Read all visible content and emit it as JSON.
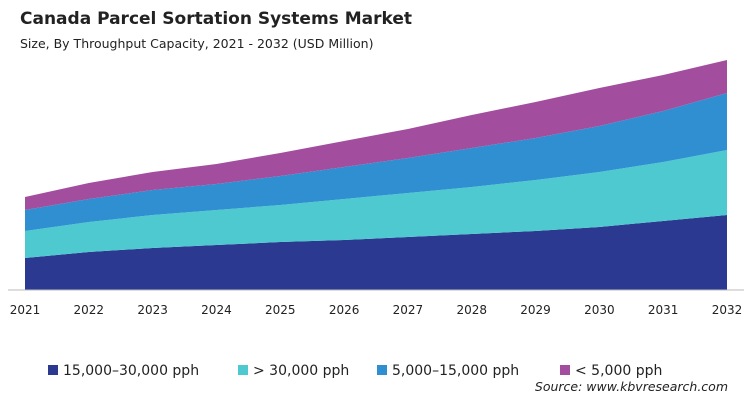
{
  "chart_data": {
    "type": "stacked_area",
    "title": "Canada Parcel Sortation Systems Market",
    "subtitle": "Size, By Throughput Capacity, 2021 - 2032 (USD Million)",
    "source": "Source: www.kbvresearch.com",
    "categories": [
      "2021",
      "2022",
      "2023",
      "2024",
      "2025",
      "2026",
      "2027",
      "2028",
      "2029",
      "2030",
      "2031",
      "2032"
    ],
    "ylim": [
      0,
      240
    ],
    "series": [
      {
        "name": "15,000–30,000 pph",
        "color": "#2b3990",
        "values": [
          32,
          38,
          42,
          45,
          48,
          50,
          53,
          56,
          59,
          63,
          69,
          75
        ]
      },
      {
        "name": "> 30,000 pph",
        "color": "#4ec9d0",
        "values": [
          27,
          30,
          33,
          35,
          37,
          41,
          44,
          47,
          51,
          55,
          59,
          65
        ]
      },
      {
        "name": "5,000–15,000 pph",
        "color": "#2f8fd0",
        "values": [
          21,
          23,
          25,
          26,
          29,
          32,
          35,
          39,
          42,
          46,
          51,
          57
        ]
      },
      {
        "name": "< 5,000 pph",
        "color": "#a34d9e",
        "values": [
          13,
          16,
          18,
          20,
          23,
          26,
          29,
          33,
          36,
          38,
          36,
          33
        ]
      }
    ]
  }
}
